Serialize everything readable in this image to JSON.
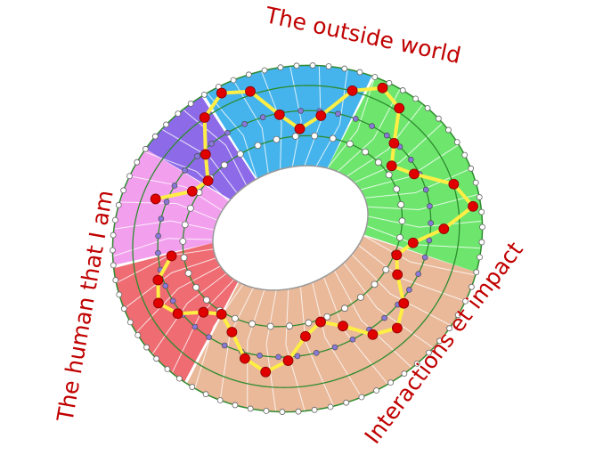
{
  "labels": {
    "top": "The outside world",
    "left": "The human that I am",
    "right": "Interactions et impact"
  }
}
